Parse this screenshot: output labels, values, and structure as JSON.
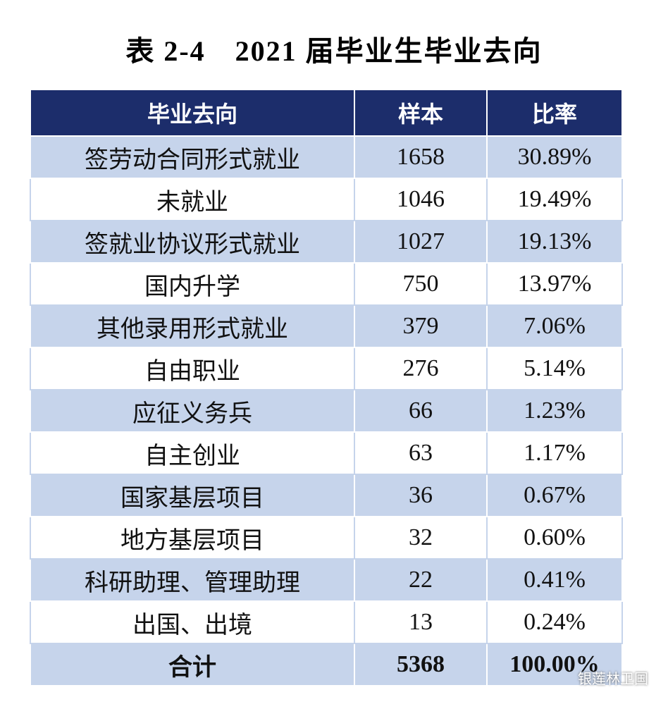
{
  "header": {
    "title": "表 2-4　2021 届毕业生毕业去向"
  },
  "table": {
    "columns": [
      "毕业去向",
      "样本",
      "比率"
    ],
    "rows": [
      [
        "签劳动合同形式就业",
        "1658",
        "30.89%"
      ],
      [
        "未就业",
        "1046",
        "19.49%"
      ],
      [
        "签就业协议形式就业",
        "1027",
        "19.13%"
      ],
      [
        "国内升学",
        "750",
        "13.97%"
      ],
      [
        "其他录用形式就业",
        "379",
        "7.06%"
      ],
      [
        "自由职业",
        "276",
        "5.14%"
      ],
      [
        "应征义务兵",
        "66",
        "1.23%"
      ],
      [
        "自主创业",
        "63",
        "1.17%"
      ],
      [
        "国家基层项目",
        "36",
        "0.67%"
      ],
      [
        "地方基层项目",
        "32",
        "0.60%"
      ],
      [
        "科研助理、管理助理",
        "22",
        "0.41%"
      ],
      [
        "出国、出境",
        "13",
        "0.24%"
      ]
    ],
    "total": [
      "合计",
      "5368",
      "100.00%"
    ]
  },
  "watermark": "银莲林卫国"
}
